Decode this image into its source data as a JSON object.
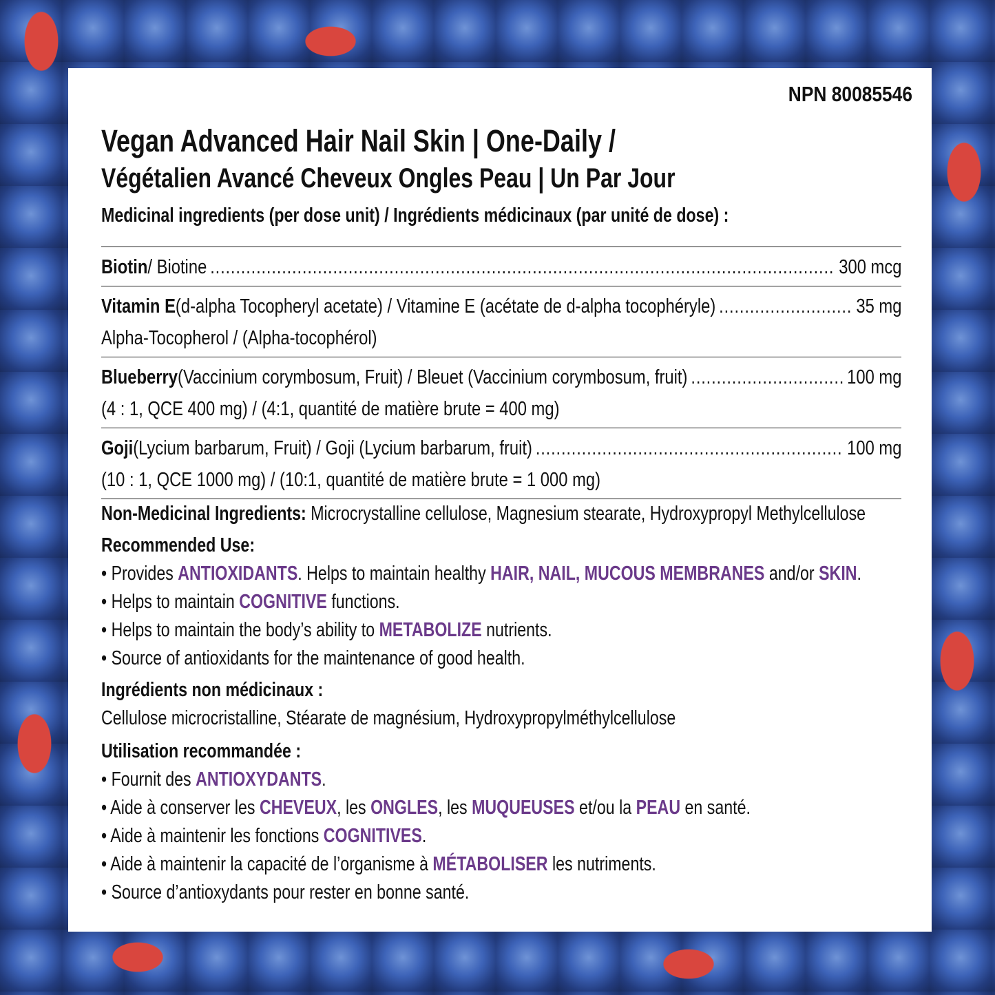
{
  "npn": "NPN 80085546",
  "title_en": "Vegan Advanced Hair Nail Skin | One-Daily /",
  "title_fr": "Végétalien Avancé Cheveux Ongles Peau | Un Par Jour",
  "medicinal_heading": "Medicinal ingredients (per dose unit) / Ingrédients médicinaux (par unité de dose) :",
  "ingredients": [
    {
      "name": "Biotin",
      "desc": " / Biotine",
      "dose": "300 mcg",
      "sub": ""
    },
    {
      "name": "Vitamin E",
      "desc": " (d-alpha Tocopheryl acetate) / Vitamine E (acétate de d-alpha tocophéryle)",
      "dose": "35 mg",
      "sub": "Alpha-Tocopherol / (Alpha-tocophérol)"
    },
    {
      "name": "Blueberry",
      "desc": " (Vaccinium corymbosum, Fruit) / Bleuet (Vaccinium corymbosum, fruit)",
      "dose": "100 mg",
      "sub": "(4 : 1, QCE 400 mg) / (4:1, quantité de matière brute = 400 mg)"
    },
    {
      "name": "Goji",
      "desc": " (Lycium barbarum, Fruit) / Goji (Lycium barbarum, fruit)",
      "dose": "100 mg",
      "sub": "(10 : 1, QCE 1000 mg) / (10:1, quantité de matière brute = 1 000 mg)"
    }
  ],
  "non_medicinal_label": "Non-Medicinal Ingredients:",
  "non_medicinal": " Microcrystalline cellulose, Magnesium stearate, Hydroxypropyl Methylcellulose",
  "recommended_heading": "Recommended Use:",
  "recommended": [
    [
      [
        "• Provides ",
        0
      ],
      [
        "ANTIOXIDANTS",
        1
      ],
      [
        ". Helps to maintain healthy ",
        0
      ],
      [
        "HAIR, NAIL, MUCOUS MEMBRANES",
        1
      ],
      [
        " and/or ",
        0
      ],
      [
        "SKIN",
        1
      ],
      [
        ".",
        0
      ]
    ],
    [
      [
        "• Helps to maintain ",
        0
      ],
      [
        "COGNITIVE",
        1
      ],
      [
        " functions.",
        0
      ]
    ],
    [
      [
        "• Helps to maintain the body’s ability to ",
        0
      ],
      [
        "METABOLIZE",
        1
      ],
      [
        " nutrients.",
        0
      ]
    ],
    [
      [
        "• Source of antioxidants for the maintenance of good health.",
        0
      ]
    ]
  ],
  "non_medicinal_fr_heading": "Ingrédients non médicinaux :",
  "non_medicinal_fr": "Cellulose microcristalline, Stéarate de magnésium, Hydroxypropylméthylcellulose",
  "recommended_fr_heading": "Utilisation recommandée :",
  "recommended_fr": [
    [
      [
        "• Fournit des ",
        0
      ],
      [
        "ANTIOXYDANTS",
        1
      ],
      [
        ".",
        0
      ]
    ],
    [
      [
        "• Aide à conserver les ",
        0
      ],
      [
        "CHEVEUX",
        1
      ],
      [
        ", les ",
        0
      ],
      [
        "ONGLES",
        1
      ],
      [
        ", les ",
        0
      ],
      [
        "MUQUEUSES",
        1
      ],
      [
        " et/ou la ",
        0
      ],
      [
        "PEAU",
        1
      ],
      [
        " en santé.",
        0
      ]
    ],
    [
      [
        "• Aide à maintenir les fonctions ",
        0
      ],
      [
        "COGNITIVES",
        1
      ],
      [
        ".",
        0
      ]
    ],
    [
      [
        "• Aide à maintenir la capacité de l’organisme à ",
        0
      ],
      [
        "MÉTABOLISER",
        1
      ],
      [
        " les nutriments.",
        0
      ]
    ],
    [
      [
        "• Source d’antioxydants pour rester en bonne santé.",
        0
      ]
    ]
  ],
  "colors": {
    "highlight": "#6b3a8a",
    "background": "blueberries-and-goji-berries"
  }
}
